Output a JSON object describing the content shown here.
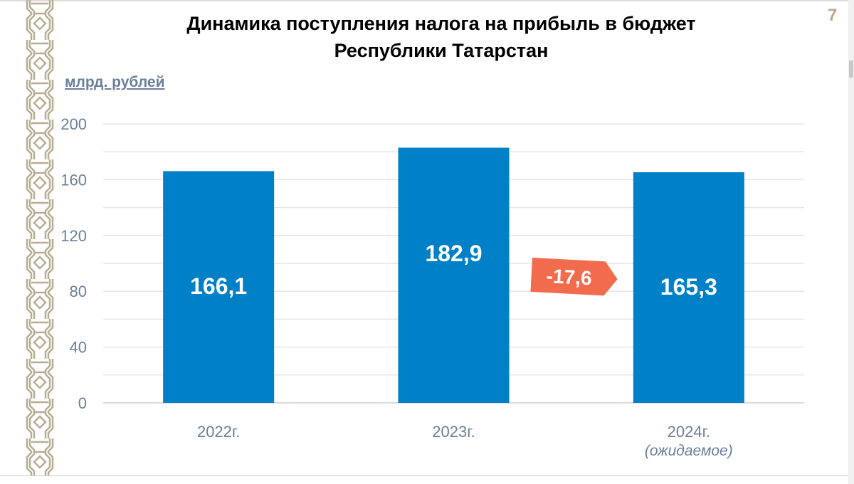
{
  "page_number": "7",
  "unit_label": "млрд. рублей",
  "colors": {
    "bar": "#0080c6",
    "badge": "#f26b4d",
    "axis_text": "#6b7f99",
    "ornament": "#b8ad93"
  },
  "chart_data": {
    "type": "bar",
    "title": "Динамика поступления налога на прибыль в бюджет Республики Татарстан",
    "title_lines": [
      "Динамика поступления налога на прибыль в бюджет",
      "Республики Татарстан"
    ],
    "ylabel": "млрд. рублей",
    "xlabel": "",
    "categories": [
      "2022г.",
      "2023г.",
      "2024г."
    ],
    "category_notes": [
      "",
      "",
      "(ожидаемое)"
    ],
    "values": [
      166.1,
      182.9,
      165.3
    ],
    "data_labels": [
      "166,1",
      "182,9",
      "165,3"
    ],
    "ylim": [
      0,
      200
    ],
    "yticks": [
      0,
      40,
      80,
      120,
      160,
      200
    ],
    "grid_step": 20,
    "grid": true,
    "annotations": [
      {
        "text": "-17,6",
        "between": [
          "2023г.",
          "2024г."
        ]
      }
    ]
  }
}
